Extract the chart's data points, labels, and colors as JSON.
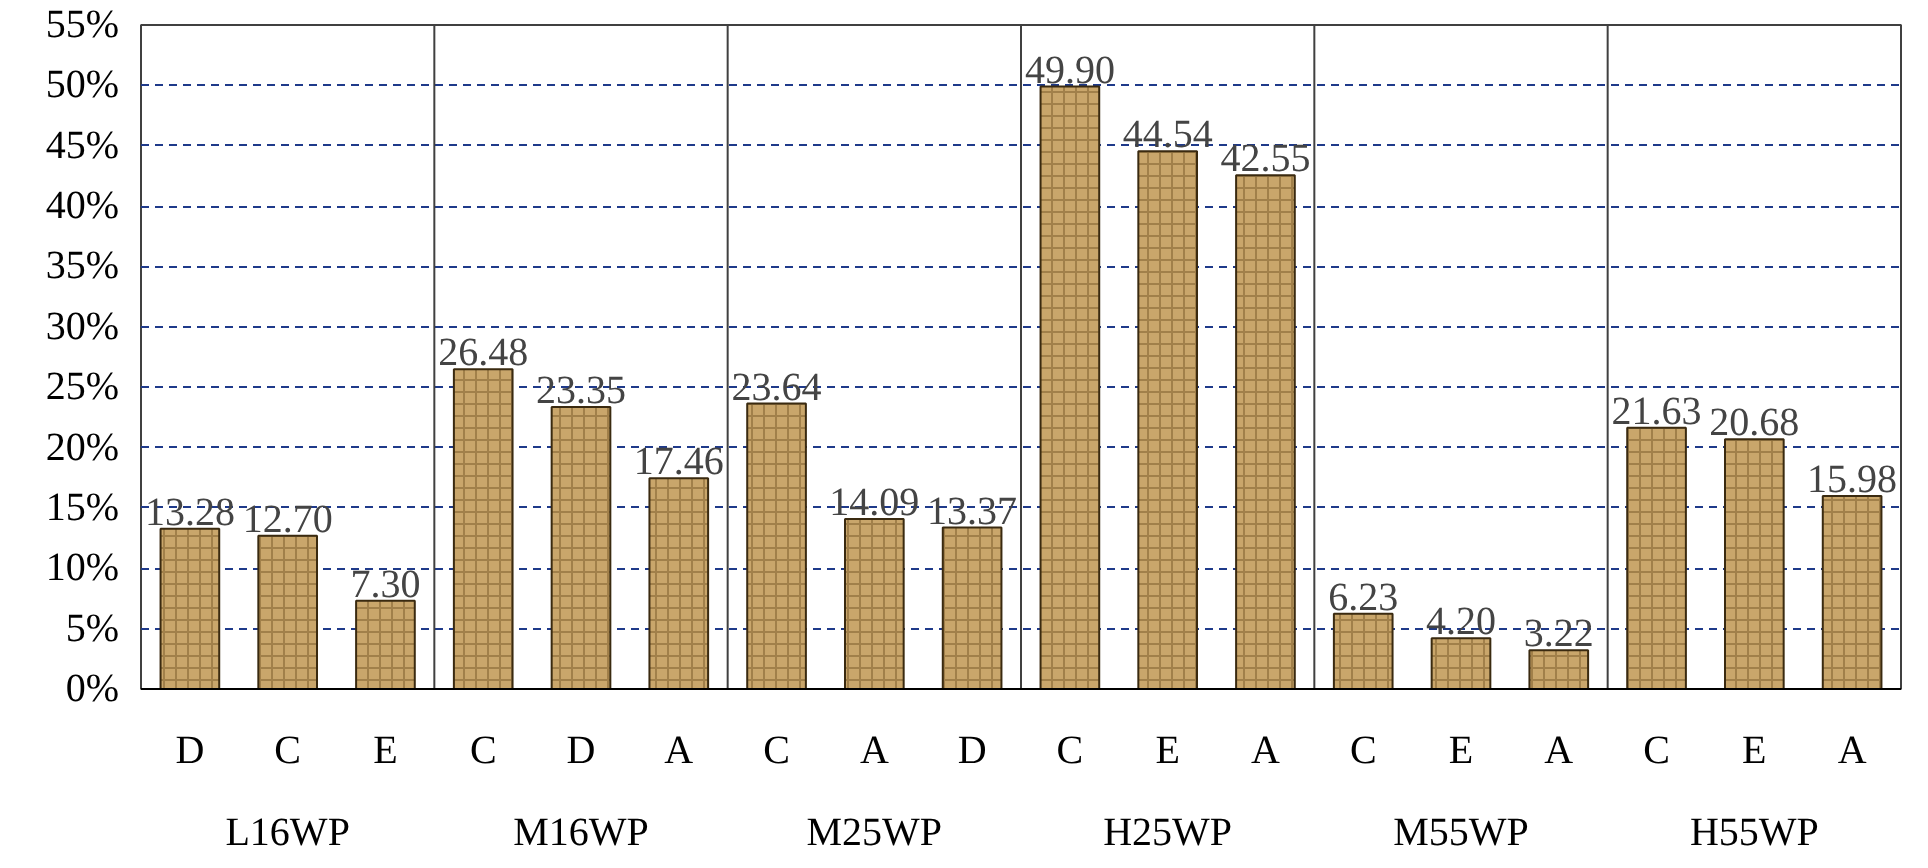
{
  "chart_data": {
    "type": "bar",
    "categories": [
      "D",
      "C",
      "E",
      "C",
      "D",
      "A",
      "C",
      "A",
      "D",
      "C",
      "E",
      "A",
      "C",
      "E",
      "A",
      "C",
      "E",
      "A"
    ],
    "values": [
      13.28,
      12.7,
      7.3,
      26.48,
      23.35,
      17.46,
      23.64,
      14.09,
      13.37,
      49.9,
      44.54,
      42.55,
      6.23,
      4.2,
      3.22,
      21.63,
      20.68,
      15.98
    ],
    "color": "#c9a66b",
    "value_labels": [
      "13.28",
      "12.70",
      "7.30",
      "26.48",
      "23.35",
      "17.46",
      "23.64",
      "14.09",
      "13.37",
      "49.90",
      "44.54",
      "42.55",
      "6.23",
      "4.20",
      "3.22",
      "21.63",
      "20.68",
      "15.98"
    ],
    "annotations": [
      "L16WP",
      "M16WP",
      "M25WP",
      "H25WP",
      "M55WP",
      "H55WP"
    ],
    "ylim": [
      0,
      55
    ],
    "yticks": [
      {
        "value": 0,
        "label": "0%"
      },
      {
        "value": 5,
        "label": "5%"
      },
      {
        "value": 10,
        "label": "10%"
      },
      {
        "value": 15,
        "label": "15%"
      },
      {
        "value": 20,
        "label": "20%"
      },
      {
        "value": 25,
        "label": "25%"
      },
      {
        "value": 30,
        "label": "30%"
      },
      {
        "value": 35,
        "label": "35%"
      },
      {
        "value": 40,
        "label": "40%"
      },
      {
        "value": 45,
        "label": "45%"
      },
      {
        "value": 50,
        "label": "50%"
      },
      {
        "value": 55,
        "label": "55%"
      }
    ],
    "grid": "y"
  }
}
